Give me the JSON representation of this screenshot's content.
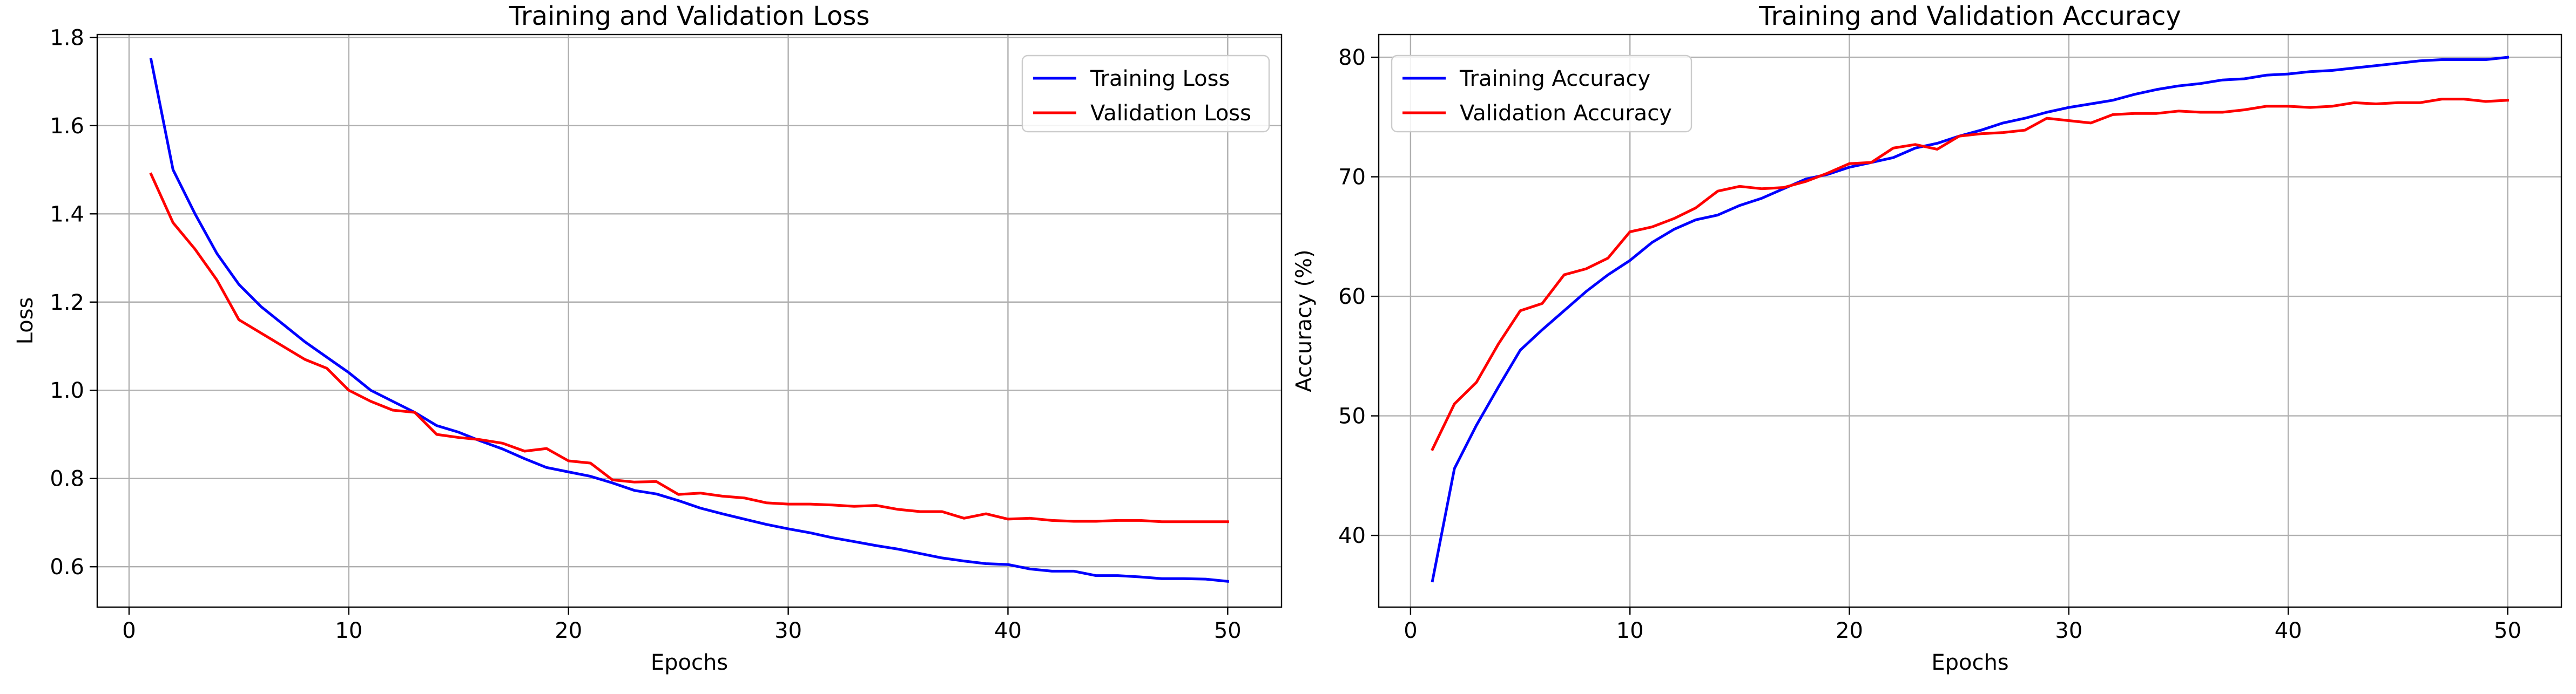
{
  "chart_data": [
    {
      "type": "line",
      "title": "Training and Validation Loss",
      "xlabel": "Epochs",
      "ylabel": "Loss",
      "xlim": [
        -1.45,
        52.45
      ],
      "ylim": [
        0.5085,
        1.8065
      ],
      "xticks": [
        0,
        10,
        20,
        30,
        40,
        50
      ],
      "yticks": [
        0.6,
        0.8,
        1.0,
        1.2,
        1.4,
        1.6,
        1.8
      ],
      "ytick_labels": [
        "0.6",
        "0.8",
        "1.0",
        "1.2",
        "1.4",
        "1.6",
        "1.8"
      ],
      "grid": true,
      "legend_position": "upper right",
      "x": [
        1,
        2,
        3,
        4,
        5,
        6,
        7,
        8,
        9,
        10,
        11,
        12,
        13,
        14,
        15,
        16,
        17,
        18,
        19,
        20,
        21,
        22,
        23,
        24,
        25,
        26,
        27,
        28,
        29,
        30,
        31,
        32,
        33,
        34,
        35,
        36,
        37,
        38,
        39,
        40,
        41,
        42,
        43,
        44,
        45,
        46,
        47,
        48,
        49,
        50
      ],
      "series": [
        {
          "name": "Training Loss",
          "color": "#0000ff",
          "values": [
            1.75,
            1.5,
            1.4,
            1.31,
            1.24,
            1.19,
            1.15,
            1.11,
            1.075,
            1.04,
            1.0,
            0.975,
            0.95,
            0.92,
            0.905,
            0.885,
            0.867,
            0.845,
            0.825,
            0.815,
            0.805,
            0.79,
            0.773,
            0.765,
            0.75,
            0.733,
            0.72,
            0.708,
            0.696,
            0.686,
            0.677,
            0.666,
            0.657,
            0.648,
            0.64,
            0.63,
            0.62,
            0.613,
            0.607,
            0.605,
            0.595,
            0.59,
            0.59,
            0.58,
            0.58,
            0.577,
            0.573,
            0.573,
            0.572,
            0.567
          ]
        },
        {
          "name": "Validation Loss",
          "color": "#ff0000",
          "values": [
            1.49,
            1.38,
            1.32,
            1.25,
            1.16,
            1.13,
            1.1,
            1.07,
            1.05,
            1.0,
            0.975,
            0.955,
            0.95,
            0.9,
            0.893,
            0.888,
            0.88,
            0.862,
            0.868,
            0.84,
            0.835,
            0.797,
            0.792,
            0.793,
            0.764,
            0.767,
            0.76,
            0.756,
            0.745,
            0.742,
            0.742,
            0.74,
            0.737,
            0.739,
            0.73,
            0.725,
            0.725,
            0.71,
            0.72,
            0.708,
            0.71,
            0.705,
            0.703,
            0.703,
            0.705,
            0.705,
            0.702,
            0.702,
            0.702,
            0.702
          ]
        }
      ]
    },
    {
      "type": "line",
      "title": "Training and Validation Accuracy",
      "xlabel": "Epochs",
      "ylabel": "Accuracy (%)",
      "xlim": [
        -1.45,
        52.45
      ],
      "ylim": [
        34.0,
        81.9
      ],
      "xticks": [
        0,
        10,
        20,
        30,
        40,
        50
      ],
      "yticks": [
        40,
        50,
        60,
        70,
        80
      ],
      "ytick_labels": [
        "40",
        "50",
        "60",
        "70",
        "80"
      ],
      "grid": true,
      "legend_position": "upper left",
      "x": [
        1,
        2,
        3,
        4,
        5,
        6,
        7,
        8,
        9,
        10,
        11,
        12,
        13,
        14,
        15,
        16,
        17,
        18,
        19,
        20,
        21,
        22,
        23,
        24,
        25,
        26,
        27,
        28,
        29,
        30,
        31,
        32,
        33,
        34,
        35,
        36,
        37,
        38,
        39,
        40,
        41,
        42,
        43,
        44,
        45,
        46,
        47,
        48,
        49,
        50
      ],
      "series": [
        {
          "name": "Training Accuracy",
          "color": "#0000ff",
          "values": [
            36.2,
            45.6,
            49.2,
            52.4,
            55.5,
            57.2,
            58.8,
            60.4,
            61.8,
            63.0,
            64.5,
            65.6,
            66.4,
            66.8,
            67.6,
            68.2,
            69.0,
            69.8,
            70.2,
            70.8,
            71.2,
            71.6,
            72.4,
            72.8,
            73.4,
            73.9,
            74.5,
            74.9,
            75.4,
            75.8,
            76.1,
            76.4,
            76.9,
            77.3,
            77.6,
            77.8,
            78.1,
            78.2,
            78.5,
            78.6,
            78.8,
            78.9,
            79.1,
            79.3,
            79.5,
            79.7,
            79.8,
            79.8,
            79.8,
            80.0
          ]
        },
        {
          "name": "Validation Accuracy",
          "color": "#ff0000",
          "values": [
            47.2,
            51.0,
            52.8,
            56.0,
            58.8,
            59.4,
            61.8,
            62.3,
            63.2,
            65.4,
            65.8,
            66.5,
            67.4,
            68.8,
            69.2,
            69.0,
            69.1,
            69.6,
            70.3,
            71.1,
            71.2,
            72.4,
            72.7,
            72.3,
            73.4,
            73.6,
            73.7,
            73.9,
            74.9,
            74.7,
            74.5,
            75.2,
            75.3,
            75.3,
            75.5,
            75.4,
            75.4,
            75.6,
            75.9,
            75.9,
            75.8,
            75.9,
            76.2,
            76.1,
            76.2,
            76.2,
            76.5,
            76.5,
            76.3,
            76.4
          ]
        }
      ]
    }
  ]
}
